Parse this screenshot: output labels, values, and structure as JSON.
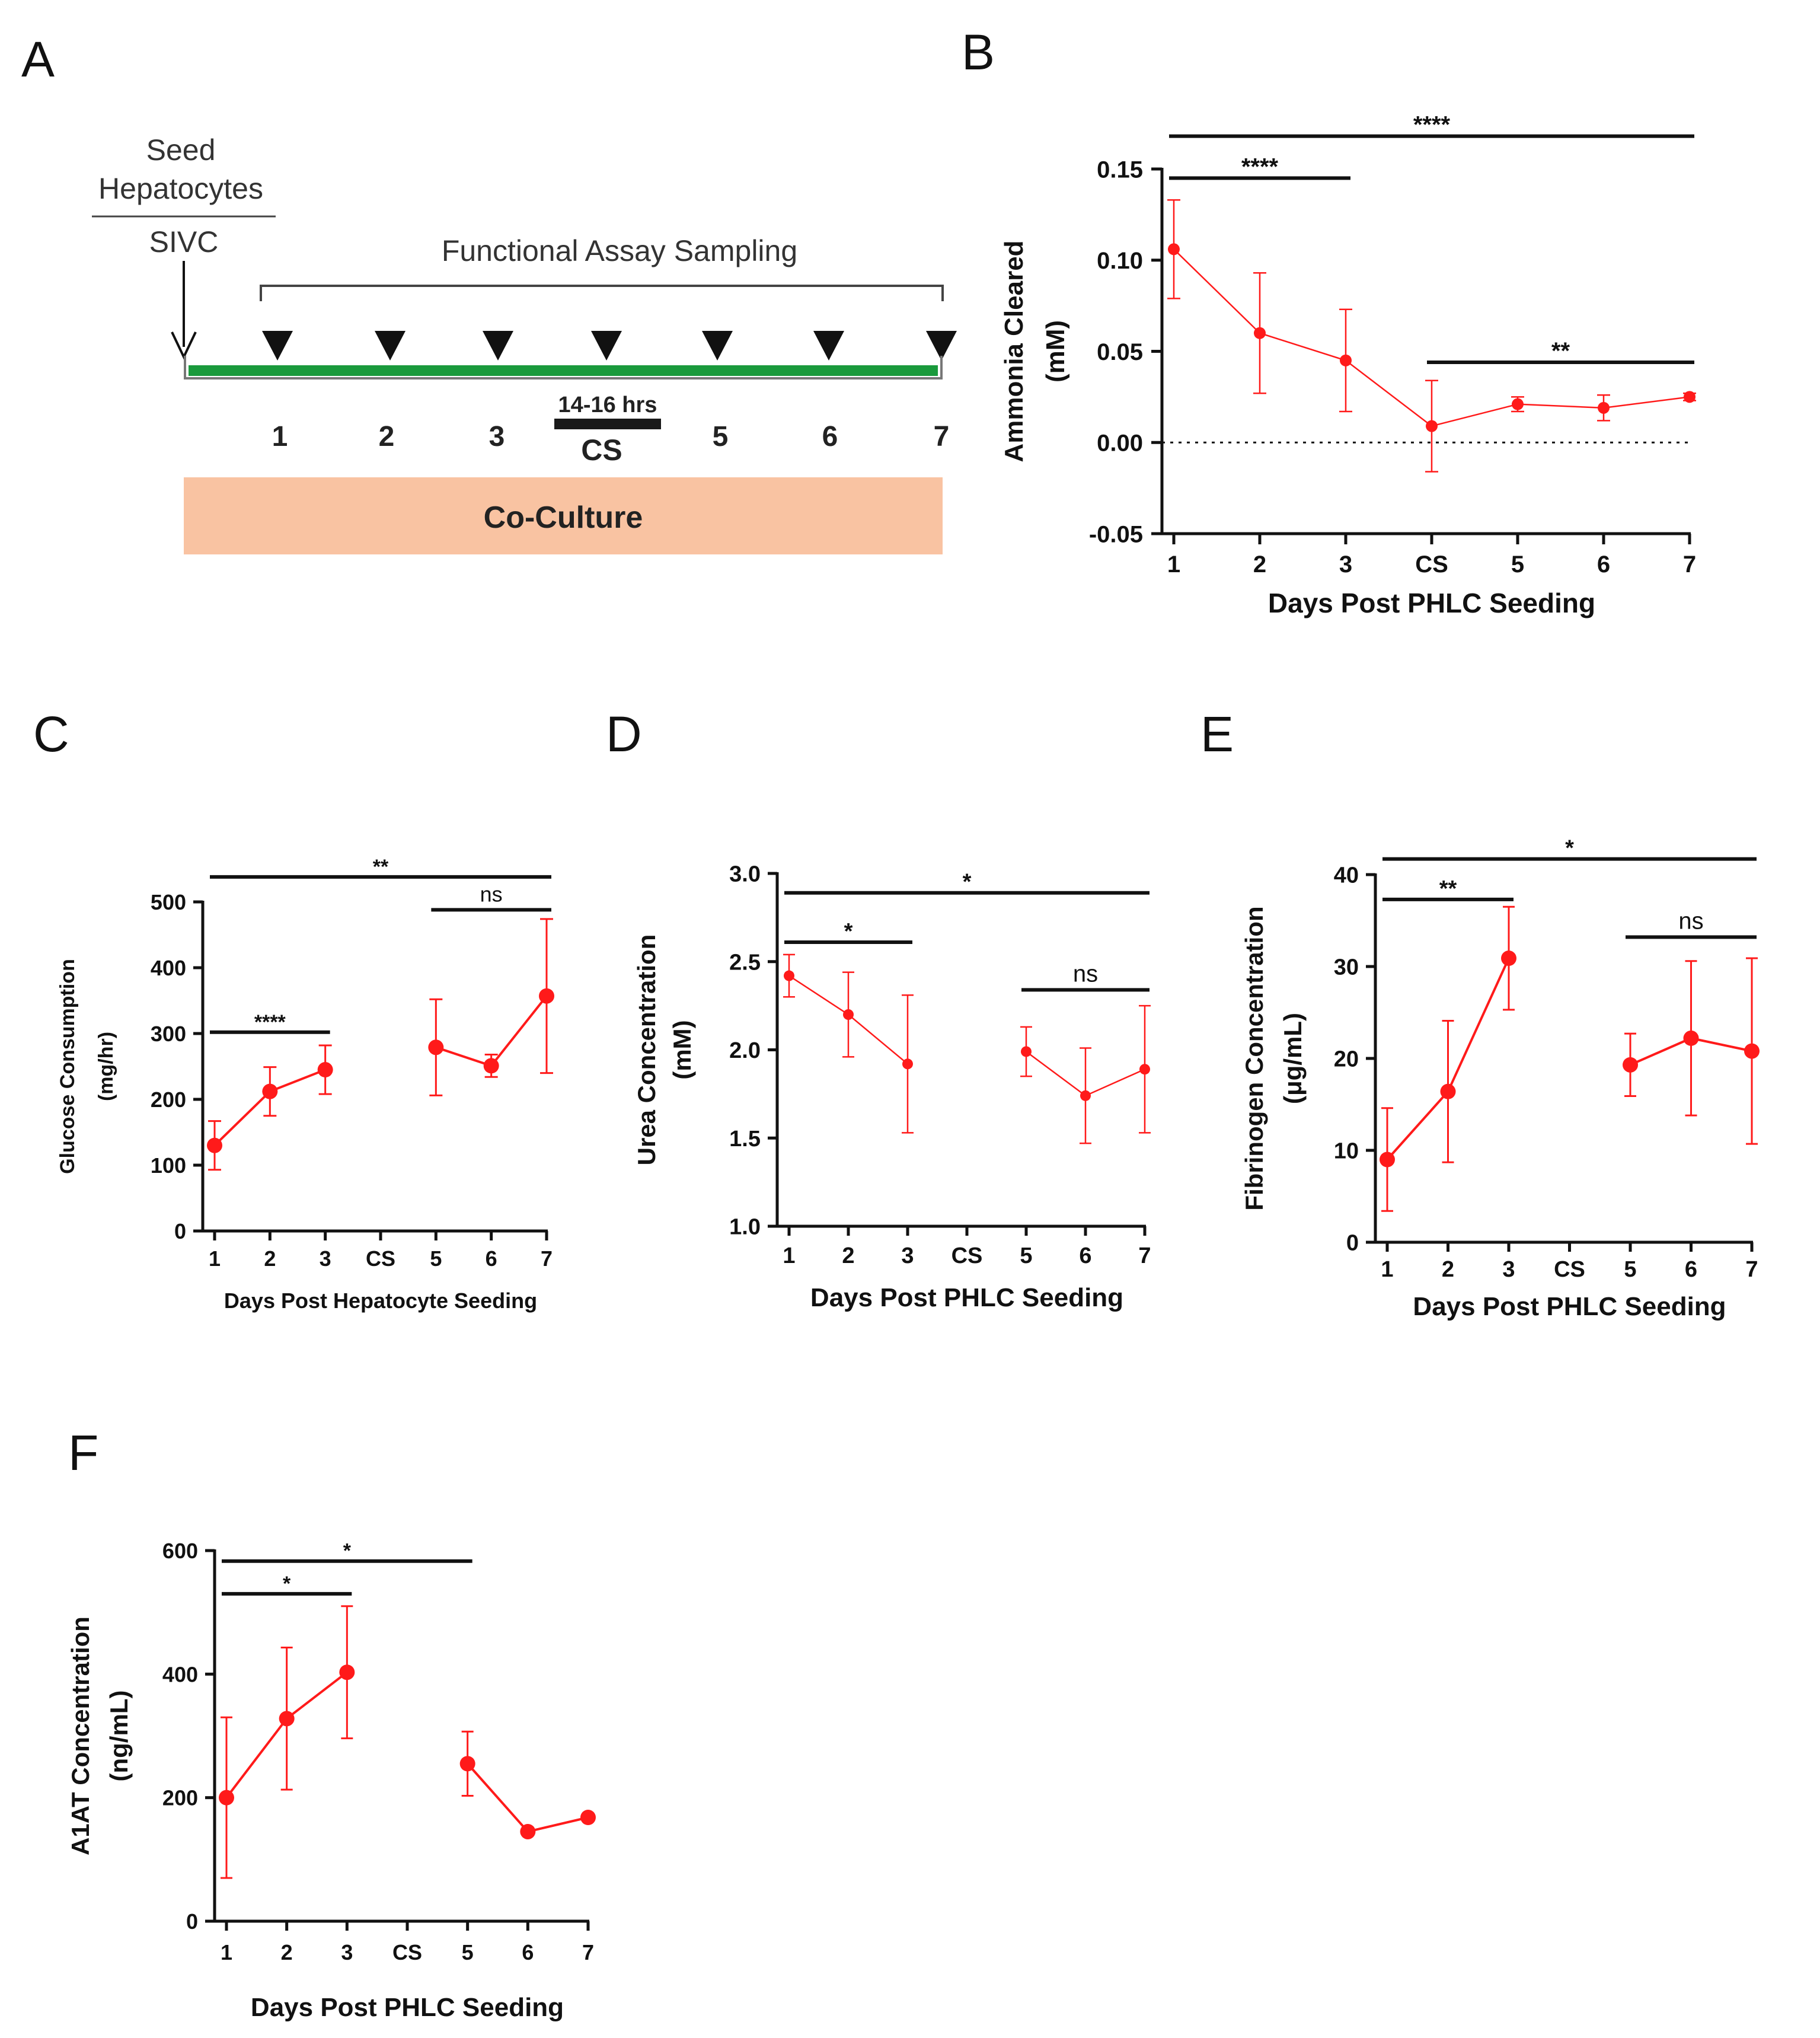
{
  "panels": {
    "A": "A",
    "B": "B",
    "C": "C",
    "D": "D",
    "E": "E",
    "F": "F"
  },
  "timeline": {
    "seed_line1": "Seed",
    "seed_line2": "Hepatocytes",
    "sivc": "SIVC",
    "sampling_label": "Functional Assay Sampling",
    "day_labels": [
      "1",
      "2",
      "3",
      "5",
      "6",
      "7"
    ],
    "cs_duration": "14-16 hrs",
    "cs_label": "CS",
    "coculture_label": "Co-Culture",
    "colors": {
      "timeline": "#1a9a3c",
      "coculture": "#f9c3a2",
      "arrow": "#111111"
    }
  },
  "chart_data": [
    {
      "id": "B",
      "type": "line",
      "ylabel1": "Ammonia Cleared",
      "ylabel2": "(mM)",
      "xlabel": "Days Post PHLC Seeding",
      "categories": [
        "1",
        "2",
        "3",
        "CS",
        "5",
        "6",
        "7"
      ],
      "yticks": [
        "-0.05",
        "0.00",
        "0.05",
        "0.10",
        "0.15"
      ],
      "ylim": [
        -0.05,
        0.15
      ],
      "tickvals": [
        -0.05,
        0,
        0.05,
        0.1,
        0.15
      ],
      "zero_line": true,
      "connect_across_gap": true,
      "series": [
        {
          "name": "Ammonia",
          "color": "#ff1a1a",
          "x": [
            1,
            2,
            3,
            4,
            5,
            6,
            7
          ],
          "values": [
            0.106,
            0.06,
            0.045,
            0.009,
            0.021,
            0.019,
            0.025
          ],
          "err": [
            0.027,
            0.033,
            0.028,
            0.025,
            0.004,
            0.007,
            0.002
          ]
        }
      ],
      "significance": [
        {
          "from": 1,
          "to": 7,
          "label": "****",
          "y": 0.168
        },
        {
          "from": 1,
          "to": 3,
          "label": "****",
          "y": 0.145
        },
        {
          "from": 4,
          "to": 7,
          "label": "**",
          "y": 0.044
        }
      ]
    },
    {
      "id": "C",
      "type": "line",
      "ylabel1": "Glucose Consumption",
      "ylabel2": "(mg/hr)",
      "xlabel": "Days Post Hepatocyte Seeding",
      "categories": [
        "1",
        "2",
        "3",
        "CS",
        "5",
        "6",
        "7"
      ],
      "yticks": [
        "0",
        "100",
        "200",
        "300",
        "400",
        "500"
      ],
      "ylim": [
        0,
        500
      ],
      "tickvals": [
        0,
        100,
        200,
        300,
        400,
        500
      ],
      "zero_line": false,
      "connect_across_gap": false,
      "series": [
        {
          "name": "Glucose",
          "color": "#ff1a1a",
          "x": [
            1,
            2,
            3,
            5,
            6,
            7
          ],
          "values": [
            130,
            212,
            245,
            279,
            251,
            357
          ],
          "err": [
            37,
            37,
            37,
            73,
            17,
            117
          ]
        }
      ],
      "significance": [
        {
          "from": 1,
          "to": 7,
          "label": "**",
          "y": 538
        },
        {
          "from": 5,
          "to": 7,
          "label": "ns",
          "y": 488
        },
        {
          "from": 1,
          "to": 3,
          "label": "****",
          "y": 302
        }
      ]
    },
    {
      "id": "D",
      "type": "line",
      "ylabel1": "Urea Concentration",
      "ylabel2": "(mM)",
      "xlabel": "Days Post PHLC Seeding",
      "categories": [
        "1",
        "2",
        "3",
        "CS",
        "5",
        "6",
        "7"
      ],
      "yticks": [
        "1.0",
        "1.5",
        "2.0",
        "2.5",
        "3.0"
      ],
      "ylim": [
        1.0,
        3.0
      ],
      "tickvals": [
        1.0,
        1.5,
        2.0,
        2.5,
        3.0
      ],
      "zero_line": false,
      "connect_across_gap": false,
      "series": [
        {
          "name": "Urea",
          "color": "#ff1a1a",
          "x": [
            1,
            2,
            3,
            5,
            6,
            7
          ],
          "values": [
            2.42,
            2.2,
            1.92,
            1.99,
            1.74,
            1.89
          ],
          "err": [
            0.12,
            0.24,
            0.39,
            0.14,
            0.27,
            0.36
          ]
        }
      ],
      "significance": [
        {
          "from": 1,
          "to": 7,
          "label": "*",
          "y": 2.89
        },
        {
          "from": 1,
          "to": 3,
          "label": "*",
          "y": 2.61
        },
        {
          "from": 5,
          "to": 7,
          "label": "ns",
          "y": 2.34
        }
      ]
    },
    {
      "id": "E",
      "type": "line",
      "ylabel1": "Fibrinogen Concentration",
      "ylabel2": "(μg/mL)",
      "xlabel": "Days Post PHLC Seeding",
      "categories": [
        "1",
        "2",
        "3",
        "CS",
        "5",
        "6",
        "7"
      ],
      "yticks": [
        "0",
        "10",
        "20",
        "30",
        "40"
      ],
      "ylim": [
        0,
        40
      ],
      "tickvals": [
        0,
        10,
        20,
        30,
        40
      ],
      "zero_line": false,
      "connect_across_gap": false,
      "series": [
        {
          "name": "Fibrinogen",
          "color": "#ff1a1a",
          "x": [
            1,
            2,
            3,
            5,
            6,
            7
          ],
          "values": [
            9.0,
            16.4,
            30.9,
            19.3,
            22.2,
            20.8
          ],
          "err": [
            5.6,
            7.7,
            5.6,
            3.4,
            8.4,
            10.1
          ]
        }
      ],
      "significance": [
        {
          "from": 1,
          "to": 7,
          "label": "*",
          "y": 41.7
        },
        {
          "from": 1,
          "to": 3,
          "label": "**",
          "y": 37.3
        },
        {
          "from": 5,
          "to": 7,
          "label": "ns",
          "y": 33.2
        }
      ]
    },
    {
      "id": "F",
      "type": "line",
      "ylabel1": "A1AT Concentration",
      "ylabel2": "(ng/mL)",
      "xlabel": "Days Post PHLC Seeding",
      "categories": [
        "1",
        "2",
        "3",
        "CS",
        "5",
        "6",
        "7"
      ],
      "yticks": [
        "0",
        "200",
        "400",
        "600"
      ],
      "ylim": [
        0,
        600
      ],
      "tickvals": [
        0,
        200,
        400,
        600
      ],
      "zero_line": false,
      "connect_across_gap": false,
      "series": [
        {
          "name": "A1AT",
          "color": "#ff1a1a",
          "x": [
            1,
            2,
            3,
            5,
            6,
            7
          ],
          "values": [
            200,
            328,
            403,
            255,
            145,
            168
          ],
          "err": [
            130,
            115,
            107,
            52,
            4,
            4
          ]
        }
      ],
      "significance": [
        {
          "from": 1,
          "to": 5,
          "label": "*",
          "y": 583
        },
        {
          "from": 1,
          "to": 3,
          "label": "*",
          "y": 530
        }
      ]
    }
  ]
}
